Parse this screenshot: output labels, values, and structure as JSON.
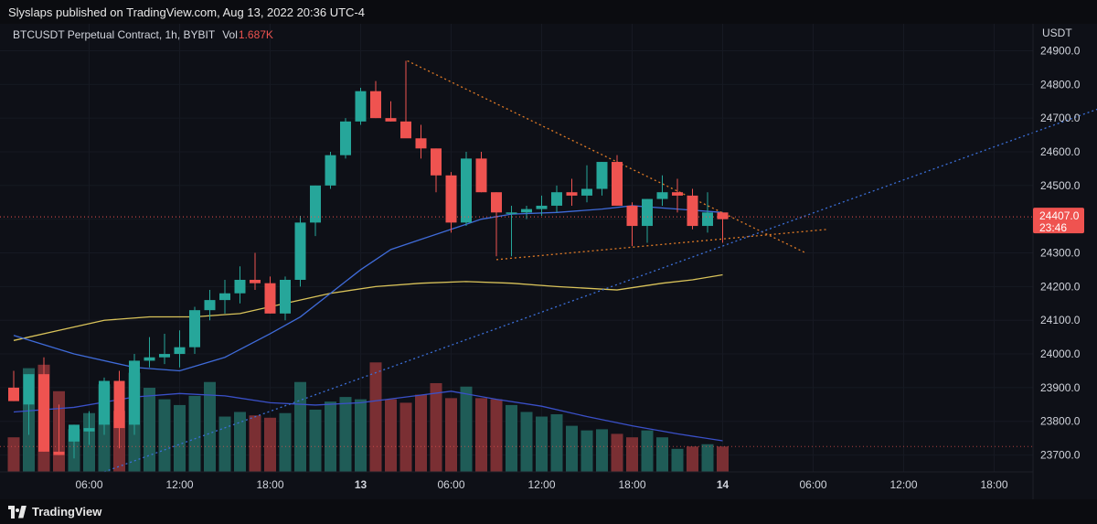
{
  "header": {
    "published_text": "Slyslaps published on TradingView.com, Aug 13, 2022 20:36 UTC-4"
  },
  "chart_data": {
    "type": "candlestick",
    "symbol_label": "BTCUSDT Perpetual Contract, 1h, BYBIT",
    "volume_label": "Vol",
    "volume_value": "1.687K",
    "currency": "USDT",
    "ylim": [
      23650,
      24980
    ],
    "price_ticks": [
      "24900.0",
      "24800.0",
      "24700.0",
      "24600.0",
      "24500.0",
      "24400.0",
      "24300.0",
      "24200.0",
      "24100.0",
      "24000.0",
      "23900.0",
      "23800.0",
      "23700.0"
    ],
    "time_ticks": [
      "06:00",
      "12:00",
      "18:00",
      "13",
      "06:00",
      "12:00",
      "18:00",
      "14",
      "06:00",
      "12:00",
      "18:00"
    ],
    "time_tick_hours": [
      6,
      12,
      18,
      24,
      30,
      36,
      42,
      48,
      54,
      60,
      66
    ],
    "bold_time_ticks": [
      "13",
      "14"
    ],
    "last_price": "24407.0",
    "countdown": "23:46",
    "start_hour": 1,
    "candles": [
      {
        "o": 23900,
        "h": 23950,
        "l": 23860,
        "c": 23860
      },
      {
        "o": 23850,
        "h": 23940,
        "l": 23760,
        "c": 23940
      },
      {
        "o": 23940,
        "h": 23990,
        "l": 23710,
        "c": 23710
      },
      {
        "o": 23710,
        "h": 23850,
        "l": 23700,
        "c": 23700
      },
      {
        "o": 23740,
        "h": 23790,
        "l": 23690,
        "c": 23790
      },
      {
        "o": 23770,
        "h": 23830,
        "l": 23730,
        "c": 23780
      },
      {
        "o": 23790,
        "h": 23930,
        "l": 23760,
        "c": 23920
      },
      {
        "o": 23920,
        "h": 23950,
        "l": 23720,
        "c": 23780
      },
      {
        "o": 23790,
        "h": 24000,
        "l": 23760,
        "c": 23980
      },
      {
        "o": 23980,
        "h": 24050,
        "l": 23960,
        "c": 23990
      },
      {
        "o": 23990,
        "h": 24060,
        "l": 23970,
        "c": 24000
      },
      {
        "o": 24000,
        "h": 24070,
        "l": 23960,
        "c": 24020
      },
      {
        "o": 24020,
        "h": 24140,
        "l": 24000,
        "c": 24130
      },
      {
        "o": 24130,
        "h": 24190,
        "l": 24100,
        "c": 24160
      },
      {
        "o": 24160,
        "h": 24220,
        "l": 24120,
        "c": 24180
      },
      {
        "o": 24180,
        "h": 24260,
        "l": 24150,
        "c": 24220
      },
      {
        "o": 24220,
        "h": 24300,
        "l": 24190,
        "c": 24210
      },
      {
        "o": 24210,
        "h": 24230,
        "l": 24120,
        "c": 24120
      },
      {
        "o": 24120,
        "h": 24230,
        "l": 24100,
        "c": 24220
      },
      {
        "o": 24220,
        "h": 24410,
        "l": 24200,
        "c": 24390
      },
      {
        "o": 24390,
        "h": 24500,
        "l": 24350,
        "c": 24500
      },
      {
        "o": 24500,
        "h": 24600,
        "l": 24490,
        "c": 24590
      },
      {
        "o": 24590,
        "h": 24700,
        "l": 24580,
        "c": 24690
      },
      {
        "o": 24690,
        "h": 24790,
        "l": 24680,
        "c": 24780
      },
      {
        "o": 24780,
        "h": 24810,
        "l": 24700,
        "c": 24700
      },
      {
        "o": 24700,
        "h": 24750,
        "l": 24690,
        "c": 24690
      },
      {
        "o": 24690,
        "h": 24870,
        "l": 24650,
        "c": 24640
      },
      {
        "o": 24640,
        "h": 24680,
        "l": 24580,
        "c": 24610
      },
      {
        "o": 24610,
        "h": 24610,
        "l": 24480,
        "c": 24530
      },
      {
        "o": 24530,
        "h": 24540,
        "l": 24360,
        "c": 24390
      },
      {
        "o": 24390,
        "h": 24600,
        "l": 24380,
        "c": 24580
      },
      {
        "o": 24580,
        "h": 24600,
        "l": 24480,
        "c": 24480
      },
      {
        "o": 24480,
        "h": 24480,
        "l": 24290,
        "c": 24420
      },
      {
        "o": 24420,
        "h": 24440,
        "l": 24290,
        "c": 24420
      },
      {
        "o": 24420,
        "h": 24440,
        "l": 24400,
        "c": 24430
      },
      {
        "o": 24430,
        "h": 24470,
        "l": 24410,
        "c": 24440
      },
      {
        "o": 24440,
        "h": 24500,
        "l": 24420,
        "c": 24480
      },
      {
        "o": 24480,
        "h": 24520,
        "l": 24440,
        "c": 24470
      },
      {
        "o": 24470,
        "h": 24560,
        "l": 24450,
        "c": 24490
      },
      {
        "o": 24490,
        "h": 24570,
        "l": 24470,
        "c": 24570
      },
      {
        "o": 24570,
        "h": 24590,
        "l": 24440,
        "c": 24440
      },
      {
        "o": 24440,
        "h": 24450,
        "l": 24320,
        "c": 24380
      },
      {
        "o": 24380,
        "h": 24460,
        "l": 24330,
        "c": 24460
      },
      {
        "o": 24460,
        "h": 24530,
        "l": 24440,
        "c": 24480
      },
      {
        "o": 24480,
        "h": 24520,
        "l": 24420,
        "c": 24470
      },
      {
        "o": 24470,
        "h": 24490,
        "l": 24370,
        "c": 24380
      },
      {
        "o": 24380,
        "h": 24480,
        "l": 24360,
        "c": 24420
      },
      {
        "o": 24420,
        "h": 24420,
        "l": 24330,
        "c": 24400
      }
    ],
    "volumes": [
      0.3,
      0.9,
      0.93,
      0.7,
      0.37,
      0.51,
      0.76,
      0.53,
      0.86,
      0.73,
      0.63,
      0.58,
      0.66,
      0.78,
      0.48,
      0.52,
      0.49,
      0.47,
      0.51,
      0.78,
      0.54,
      0.61,
      0.65,
      0.63,
      0.95,
      0.63,
      0.6,
      0.67,
      0.77,
      0.64,
      0.74,
      0.64,
      0.63,
      0.58,
      0.52,
      0.48,
      0.5,
      0.4,
      0.36,
      0.37,
      0.33,
      0.3,
      0.36,
      0.3,
      0.2,
      0.22,
      0.24,
      0.22
    ],
    "volume_up": [
      false,
      true,
      false,
      false,
      true,
      true,
      true,
      false,
      true,
      true,
      true,
      true,
      true,
      true,
      true,
      true,
      false,
      false,
      true,
      true,
      true,
      true,
      true,
      true,
      false,
      false,
      false,
      false,
      false,
      false,
      true,
      false,
      false,
      true,
      true,
      true,
      true,
      true,
      true,
      true,
      false,
      false,
      true,
      true,
      true,
      false,
      true,
      false
    ],
    "sma_fast": [
      [
        0,
        24055
      ],
      [
        4,
        24000
      ],
      [
        8,
        23960
      ],
      [
        11,
        23950
      ],
      [
        14,
        23990
      ],
      [
        17,
        24060
      ],
      [
        19,
        24110
      ],
      [
        21,
        24180
      ],
      [
        23,
        24250
      ],
      [
        25,
        24310
      ],
      [
        27,
        24340
      ],
      [
        29,
        24370
      ],
      [
        31,
        24400
      ],
      [
        33,
        24415
      ],
      [
        36,
        24420
      ],
      [
        39,
        24430
      ],
      [
        41,
        24440
      ],
      [
        44,
        24430
      ],
      [
        47,
        24420
      ]
    ],
    "sma_slow": [
      [
        0,
        24040
      ],
      [
        3,
        24070
      ],
      [
        6,
        24100
      ],
      [
        9,
        24110
      ],
      [
        12,
        24110
      ],
      [
        15,
        24120
      ],
      [
        18,
        24150
      ],
      [
        21,
        24180
      ],
      [
        24,
        24200
      ],
      [
        27,
        24210
      ],
      [
        30,
        24215
      ],
      [
        33,
        24210
      ],
      [
        36,
        24200
      ],
      [
        40,
        24190
      ],
      [
        43,
        24210
      ],
      [
        45,
        24220
      ],
      [
        47,
        24235
      ]
    ],
    "vol_ma": [
      [
        0,
        0.52
      ],
      [
        4,
        0.56
      ],
      [
        8,
        0.65
      ],
      [
        11,
        0.68
      ],
      [
        14,
        0.66
      ],
      [
        17,
        0.6
      ],
      [
        20,
        0.58
      ],
      [
        23,
        0.6
      ],
      [
        26,
        0.65
      ],
      [
        29,
        0.7
      ],
      [
        32,
        0.63
      ],
      [
        35,
        0.57
      ],
      [
        38,
        0.48
      ],
      [
        41,
        0.4
      ],
      [
        44,
        0.33
      ],
      [
        47,
        0.27
      ]
    ],
    "trend_lines": [
      {
        "name": "descending",
        "from": [
          26.1,
          24870
        ],
        "to": [
          52.5,
          24300
        ],
        "color": "#e07a26"
      },
      {
        "name": "ascending-support",
        "from": [
          32,
          24280
        ],
        "to": [
          54,
          24370
        ],
        "color": "#e07a26"
      },
      {
        "name": "long-ascending",
        "from": [
          6,
          23650
        ],
        "to": [
          74.5,
          24770
        ],
        "color": "#3b6fd8"
      }
    ],
    "colors": {
      "up": "#26a69a",
      "down": "#ef5350",
      "sma_fast": "#3f6bd9",
      "sma_slow": "#d9c35a",
      "vol_ma": "#3a50c8",
      "price_line": "#ef5350",
      "background": "#0e1017"
    }
  },
  "footer": {
    "brand": "TradingView"
  }
}
